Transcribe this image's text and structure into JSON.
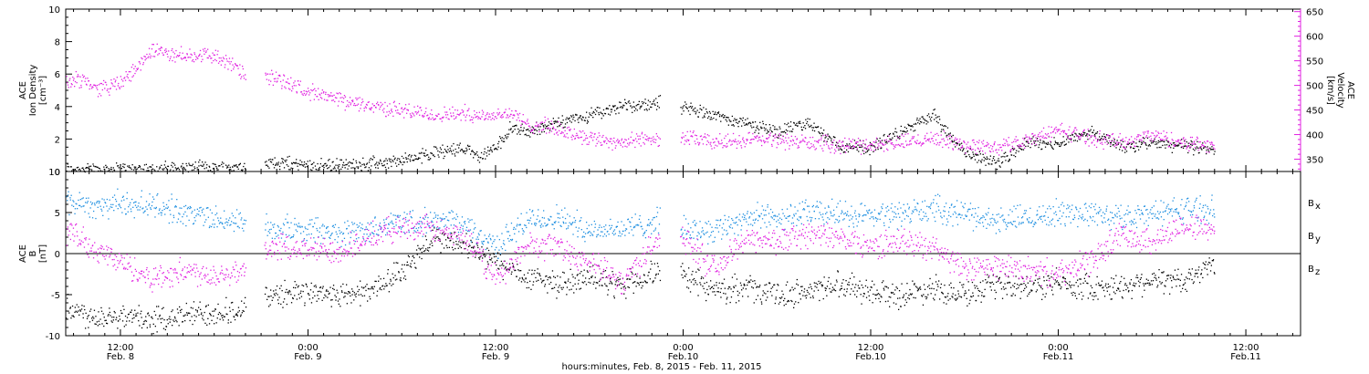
{
  "colors": {
    "black": "#000000",
    "magenta": "#e020e0",
    "blue": "#1e8fe0",
    "axis": "#000000"
  },
  "footer": {
    "xlabel": "hours:minutes, Feb.  8, 2015 - Feb. 11, 2015"
  },
  "x_ticks": [
    {
      "time": "12:00",
      "date": "Feb. 8",
      "t": 12
    },
    {
      "time": "0:00",
      "date": "Feb. 9",
      "t": 24
    },
    {
      "time": "12:00",
      "date": "Feb. 9",
      "t": 36
    },
    {
      "time": "0:00",
      "date": "Feb.10",
      "t": 48
    },
    {
      "time": "12:00",
      "date": "Feb.10",
      "t": 60
    },
    {
      "time": "0:00",
      "date": "Feb.11",
      "t": 72
    },
    {
      "time": "12:00",
      "date": "Feb.11",
      "t": 84
    }
  ],
  "chart_data": [
    {
      "type": "scatter",
      "title": "",
      "xlabel": "hours:minutes, Feb.  8, 2015 - Feb. 11, 2015",
      "xlim_hours_from_feb8_0000": [
        8.5,
        87.5
      ],
      "y_left": {
        "label_lines": [
          "ACE",
          "Ion Density",
          "[cm⁻³]"
        ],
        "range": [
          0,
          10
        ],
        "ticks": [
          0,
          2,
          4,
          6,
          8,
          10
        ]
      },
      "y_right": {
        "label_lines": [
          "ACE",
          "Velocity",
          "[km/s]"
        ],
        "range": [
          325,
          655
        ],
        "ticks": [
          350,
          400,
          450,
          500,
          550,
          600,
          650
        ]
      },
      "data_gap_hours": [
        [
          20.0,
          21.2
        ],
        [
          46.5,
          47.8
        ]
      ],
      "series": [
        {
          "name": "Ion Density",
          "axis": "left",
          "color": "#000000",
          "x": [
            8.5,
            10,
            12,
            14,
            16,
            18,
            20,
            21.2,
            22,
            24,
            26,
            28,
            30,
            32,
            34,
            35,
            36,
            37,
            38,
            40,
            42,
            44,
            46.5,
            48,
            50,
            52,
            54,
            56,
            58,
            60,
            62,
            64,
            66,
            68,
            70,
            72,
            74,
            76,
            78,
            80,
            82
          ],
          "y": [
            0.2,
            0.2,
            0.2,
            0.2,
            0.25,
            0.3,
            0.3,
            0.5,
            0.6,
            0.4,
            0.4,
            0.5,
            0.7,
            1.2,
            1.5,
            0.9,
            1.5,
            2.8,
            2.5,
            3.0,
            3.5,
            4.0,
            4.3,
            4.0,
            3.5,
            3.0,
            2.5,
            3.0,
            1.5,
            1.5,
            2.5,
            3.5,
            1.2,
            0.5,
            1.8,
            1.8,
            2.5,
            1.5,
            1.8,
            1.6,
            1.3
          ]
        },
        {
          "name": "Velocity",
          "axis": "right",
          "color": "#e020e0",
          "x": [
            8.5,
            9.5,
            10.5,
            12,
            13,
            14,
            15,
            16,
            17,
            18,
            19,
            20,
            21.2,
            22,
            24,
            26,
            28,
            30,
            32,
            34,
            35,
            36,
            37,
            38,
            39,
            40,
            42,
            44,
            46.5,
            48,
            50,
            52,
            54,
            56,
            58,
            60,
            62,
            64,
            66,
            68,
            70,
            72,
            74,
            76,
            78,
            80,
            82
          ],
          "y": [
            505,
            515,
            495,
            505,
            535,
            575,
            565,
            560,
            565,
            560,
            545,
            520,
            520,
            515,
            490,
            470,
            460,
            450,
            440,
            445,
            440,
            440,
            445,
            420,
            420,
            410,
            395,
            385,
            395,
            395,
            385,
            390,
            390,
            385,
            380,
            380,
            385,
            395,
            380,
            375,
            390,
            410,
            395,
            385,
            400,
            385,
            380
          ]
        }
      ]
    },
    {
      "type": "scatter",
      "title": "",
      "xlim_hours_from_feb8_0000": [
        8.5,
        87.5
      ],
      "y_left": {
        "label_lines": [
          "ACE",
          "B",
          "[nT]"
        ],
        "range": [
          -10,
          10
        ],
        "ticks": [
          -10,
          -5,
          0,
          5,
          10
        ]
      },
      "zero_line": true,
      "data_gap_hours": [
        [
          20.0,
          21.2
        ],
        [
          46.5,
          47.8
        ]
      ],
      "legend": [
        {
          "label": "B",
          "sub": "x",
          "color": "#000000"
        },
        {
          "label": "B",
          "sub": "y",
          "color": "#1e8fe0"
        },
        {
          "label": "B",
          "sub": "z",
          "color": "#e020e0"
        }
      ],
      "series": [
        {
          "name": "Bx",
          "color": "#000000",
          "x": [
            8.5,
            10,
            12,
            14,
            16,
            18,
            20,
            21.2,
            22,
            24,
            26,
            28,
            30,
            32,
            34,
            36,
            38,
            40,
            42,
            44,
            46.5,
            48,
            50,
            52,
            54,
            56,
            58,
            60,
            62,
            64,
            66,
            68,
            70,
            72,
            74,
            76,
            78,
            80,
            82
          ],
          "y": [
            -6.5,
            -7.5,
            -7.5,
            -8.0,
            -7.5,
            -7.0,
            -7.0,
            -5.0,
            -5.0,
            -4.5,
            -5.0,
            -4.5,
            -2.0,
            2.0,
            1.0,
            -1.0,
            -3.0,
            -3.5,
            -3.0,
            -4.0,
            -2.0,
            -2.5,
            -4.5,
            -4.0,
            -5.0,
            -4.5,
            -3.5,
            -4.5,
            -5.0,
            -4.0,
            -5.0,
            -4.0,
            -4.0,
            -3.5,
            -4.0,
            -4.0,
            -3.0,
            -3.5,
            -1.0
          ]
        },
        {
          "name": "By",
          "color": "#1e8fe0",
          "x": [
            8.5,
            10,
            12,
            14,
            16,
            18,
            20,
            21.2,
            22,
            24,
            26,
            28,
            30,
            32,
            34,
            36,
            38,
            40,
            42,
            44,
            46.5,
            48,
            50,
            52,
            54,
            56,
            58,
            60,
            62,
            64,
            66,
            68,
            70,
            72,
            74,
            76,
            78,
            80,
            82
          ],
          "y": [
            6.5,
            6.0,
            6.0,
            6.0,
            5.0,
            4.5,
            3.5,
            3.5,
            3.0,
            3.0,
            2.5,
            3.0,
            4.0,
            4.0,
            3.5,
            1.0,
            4.0,
            4.5,
            3.0,
            3.0,
            4.0,
            3.0,
            3.0,
            4.5,
            4.5,
            5.0,
            5.0,
            4.5,
            5.0,
            5.5,
            5.0,
            4.0,
            4.5,
            5.0,
            5.0,
            4.5,
            5.0,
            5.5,
            5.5
          ]
        },
        {
          "name": "Bz",
          "color": "#e020e0",
          "x": [
            8.5,
            10,
            12,
            14,
            16,
            18,
            20,
            21.2,
            22,
            24,
            26,
            28,
            30,
            32,
            34,
            36,
            38,
            40,
            42,
            44,
            46.5,
            48,
            50,
            52,
            54,
            56,
            58,
            60,
            62,
            64,
            66,
            68,
            70,
            72,
            74,
            76,
            78,
            80,
            82
          ],
          "y": [
            3.0,
            1.0,
            -1.0,
            -3.0,
            -2.0,
            -2.5,
            -2.0,
            0.5,
            1.0,
            0.5,
            0.5,
            2.0,
            3.5,
            3.0,
            2.0,
            -3.0,
            1.0,
            1.0,
            -1.0,
            -3.5,
            2.0,
            2.0,
            -2.0,
            2.0,
            1.5,
            2.5,
            2.0,
            1.0,
            1.5,
            1.0,
            -2.0,
            -1.5,
            -2.0,
            -2.5,
            -1.0,
            2.5,
            1.5,
            3.5,
            3.0
          ]
        }
      ]
    }
  ]
}
